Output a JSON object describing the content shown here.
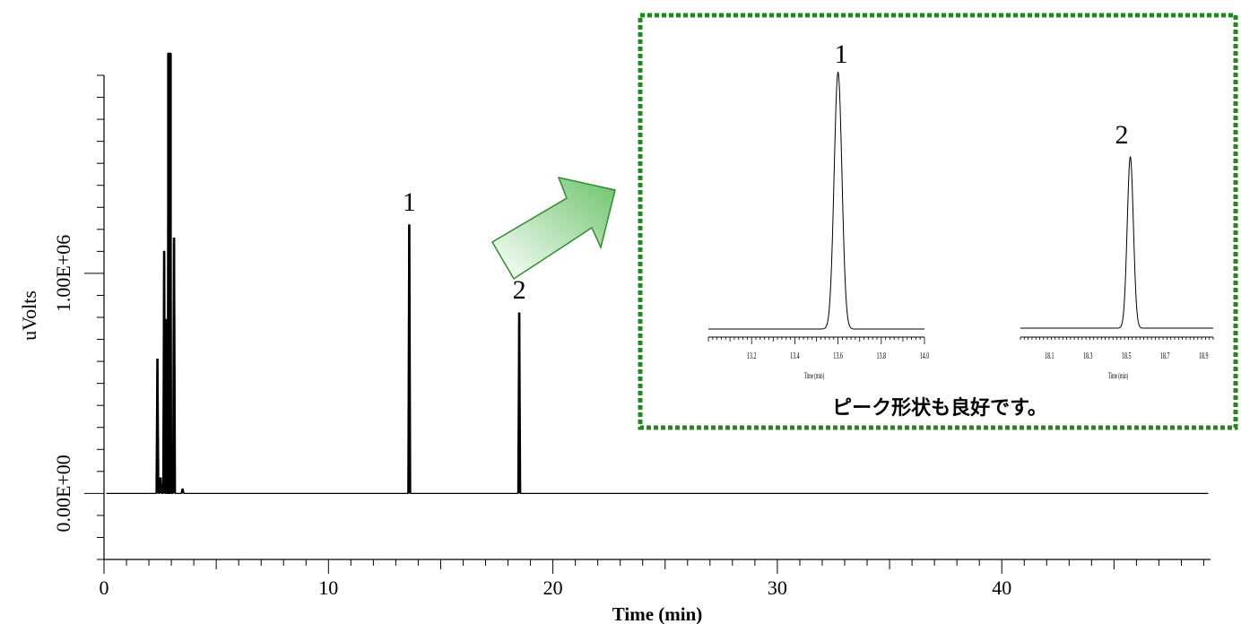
{
  "chart_data": [
    {
      "type": "line",
      "xlabel": "Time (min)",
      "ylabel": "uVolts",
      "xlim": [
        0,
        49.3
      ],
      "ylim": [
        -300000,
        1900000
      ],
      "x_ticks": [
        0,
        10,
        20,
        30,
        40
      ],
      "x_tick_labels": [
        "0",
        "10",
        "20",
        "30",
        "40"
      ],
      "y_ticks": [
        0,
        1000000
      ],
      "y_tick_labels": [
        "0.00E+00",
        "1.00E+06"
      ],
      "baseline": 0,
      "peaks": [
        {
          "t": 2.38,
          "h": 610000
        },
        {
          "t": 2.52,
          "h": 70000
        },
        {
          "t": 2.68,
          "h": 1100000
        },
        {
          "t": 2.78,
          "h": 790000
        },
        {
          "t": 2.88,
          "h": 2000000
        },
        {
          "t": 2.95,
          "h": 2000000
        },
        {
          "t": 3.12,
          "h": 1160000
        },
        {
          "t": 3.5,
          "h": 20000
        },
        {
          "t": 13.6,
          "h": 1220000
        },
        {
          "t": 18.5,
          "h": 820000
        }
      ],
      "annotations": [
        {
          "label": "1",
          "t": 13.6
        },
        {
          "label": "2",
          "t": 18.5
        }
      ]
    },
    {
      "type": "line",
      "xlabel": "Time (min)",
      "xlim": [
        13.0,
        14.0
      ],
      "x_ticks": [
        13.2,
        13.4,
        13.6,
        13.8,
        14.0
      ],
      "x_tick_labels": [
        "13.2",
        "13.4",
        "13.6",
        "13.8",
        "14.0"
      ],
      "peak": {
        "t": 13.6,
        "h": 1.0
      },
      "annotation": "1"
    },
    {
      "type": "line",
      "xlabel": "Time (min)",
      "xlim": [
        17.95,
        18.95
      ],
      "x_ticks": [
        18.1,
        18.3,
        18.5,
        18.7,
        18.9
      ],
      "x_tick_labels": [
        "18.1",
        "18.3",
        "18.5",
        "18.7",
        "18.9"
      ],
      "peak": {
        "t": 18.52,
        "h": 0.67
      },
      "annotation": "2"
    }
  ],
  "inset": {
    "caption": "ピーク形状も良好です。",
    "border_color": "#1e8a1e",
    "arrow_color": "#3a9a3a"
  }
}
